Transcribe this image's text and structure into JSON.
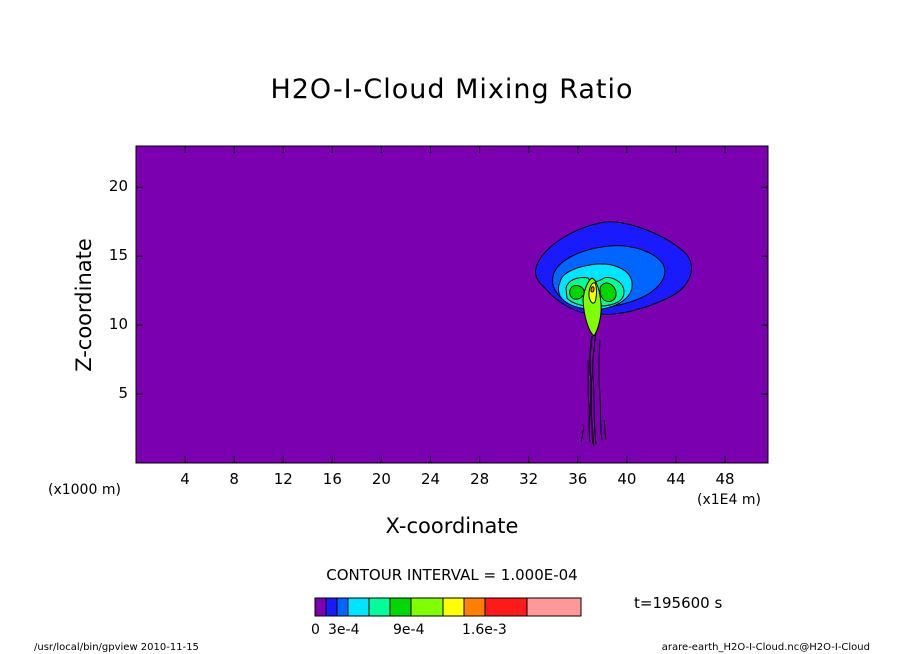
{
  "chart_data": {
    "type": "contour",
    "title": "H2O-I-Cloud Mixing Ratio",
    "xlabel": "X-coordinate",
    "ylabel": "Z-coordinate",
    "x_unit_left": "(x1000 m)",
    "x_unit_right": "(x1E4 m)",
    "xlim": [
      0,
      51.5
    ],
    "ylim": [
      0,
      23
    ],
    "x_ticks": [
      4,
      8,
      12,
      16,
      20,
      24,
      28,
      32,
      36,
      40,
      44,
      48
    ],
    "y_ticks": [
      5,
      10,
      15,
      20
    ],
    "contour_interval": "CONTOUR INTERVAL = 1.000E-04",
    "time_label": "t=195600 s",
    "colorbar_labels": [
      "0",
      "3e-4",
      "9e-4",
      "1.6e-3"
    ],
    "colorbar_colors": [
      "#7b00b0",
      "#1a1aff",
      "#0066ff",
      "#00e5ff",
      "#00ff99",
      "#00d800",
      "#80ff00",
      "#ffff00",
      "#ff8000",
      "#ff1a1a",
      "#ff9999"
    ],
    "background_color": "#7b00b0",
    "footer_left": "/usr/local/bin/gpview  2010-11-15",
    "footer_right": "arare-earth_H2O-I-Cloud.nc@H2O-I-Cloud"
  }
}
